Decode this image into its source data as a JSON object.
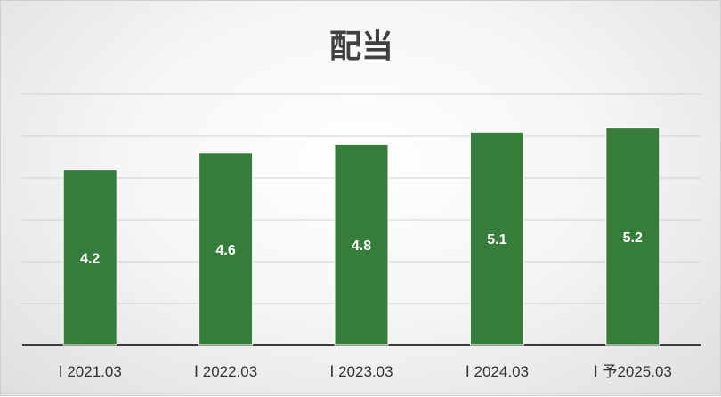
{
  "chart_data": {
    "type": "bar",
    "title": "配当",
    "categories": [
      "Ⅰ 2021.03",
      "Ⅰ 2022.03",
      "Ⅰ 2023.03",
      "Ⅰ 2024.03",
      "Ⅰ 予2025.03"
    ],
    "values": [
      4.2,
      4.6,
      4.8,
      5.1,
      5.2
    ],
    "data_labels": [
      "4.2",
      "4.6",
      "4.8",
      "5.1",
      "5.2"
    ],
    "ylim": [
      0,
      6
    ],
    "grid": true,
    "legend": "none",
    "xlabel": "",
    "ylabel": ""
  },
  "colors": {
    "bar": "#367d3c",
    "gridline": "#d0d0d0",
    "axis": "#3a3a3a"
  }
}
